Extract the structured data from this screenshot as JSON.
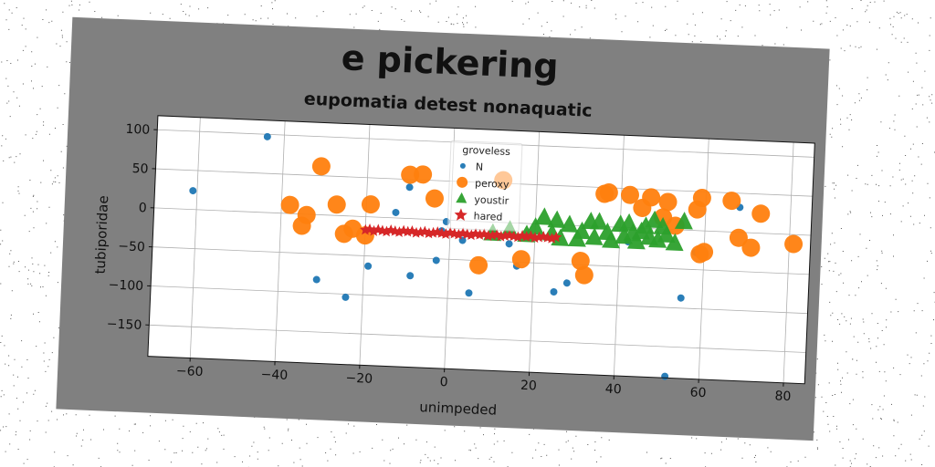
{
  "chart_data": {
    "type": "scatter",
    "title": "e pickering",
    "subtitle": "eupomatia detest nonaquatic",
    "xlabel": "unimpeded",
    "ylabel": "tubiporidae",
    "xlim": [
      -70,
      85
    ],
    "ylim": [
      -190,
      118
    ],
    "xticks": [
      -60,
      -40,
      -20,
      0,
      20,
      40,
      60,
      80
    ],
    "yticks": [
      100,
      50,
      0,
      -50,
      -100,
      -150
    ],
    "grid": true,
    "legend": {
      "title": "groveless",
      "placement": "top-center"
    },
    "series": [
      {
        "name": "N",
        "marker": "circle",
        "size": 4,
        "color": "#1f77b4",
        "points": [
          [
            -61,
            24
          ],
          [
            -44,
            97
          ],
          [
            -31,
            -83
          ],
          [
            -24,
            -104
          ],
          [
            -19,
            -63
          ],
          [
            -13,
            7
          ],
          [
            -10,
            40
          ],
          [
            -9,
            -73
          ],
          [
            -3,
            -52
          ],
          [
            -2,
            -14
          ],
          [
            -1,
            -2
          ],
          [
            3,
            -25
          ],
          [
            5,
            -92
          ],
          [
            14,
            -27
          ],
          [
            16,
            -55
          ],
          [
            25,
            -86
          ],
          [
            28,
            -74
          ],
          [
            42,
            -18
          ],
          [
            52,
            -188
          ],
          [
            55,
            -87
          ],
          [
            58,
            -28
          ],
          [
            68,
            32
          ]
        ]
      },
      {
        "name": "peroxy",
        "marker": "circle",
        "size": 10,
        "color": "#ff7f0e",
        "points": [
          [
            -38,
            11
          ],
          [
            -35,
            -15
          ],
          [
            -34,
            -1
          ],
          [
            -31,
            62
          ],
          [
            -27,
            14
          ],
          [
            -25,
            -23
          ],
          [
            -23,
            -16
          ],
          [
            -20,
            -24
          ],
          [
            -19,
            16
          ],
          [
            -10,
            56
          ],
          [
            -7,
            57
          ],
          [
            -4,
            27
          ],
          [
            7,
            -56
          ],
          [
            12,
            54
          ],
          [
            17,
            -46
          ],
          [
            31,
            -45
          ],
          [
            32,
            -63
          ],
          [
            36,
            42
          ],
          [
            37,
            44
          ],
          [
            42,
            42
          ],
          [
            45,
            26
          ],
          [
            47,
            40
          ],
          [
            50,
            15
          ],
          [
            51,
            35
          ],
          [
            53,
            5
          ],
          [
            58,
            27
          ],
          [
            59,
            42
          ],
          [
            59,
            -30
          ],
          [
            60,
            -27
          ],
          [
            66,
            40
          ],
          [
            68,
            -7
          ],
          [
            71,
            -19
          ],
          [
            73,
            25
          ],
          [
            81,
            -12
          ]
        ]
      },
      {
        "name": "youstir",
        "marker": "triangle",
        "size": 10,
        "color": "#2ca02c",
        "points": [
          [
            10,
            -15
          ],
          [
            14,
            -10
          ],
          [
            18,
            -15
          ],
          [
            20,
            -5
          ],
          [
            22,
            8
          ],
          [
            24,
            -12
          ],
          [
            25,
            5
          ],
          [
            26,
            -18
          ],
          [
            28,
            0
          ],
          [
            30,
            -18
          ],
          [
            31,
            -8
          ],
          [
            33,
            5
          ],
          [
            34,
            -15
          ],
          [
            35,
            5
          ],
          [
            37,
            -8
          ],
          [
            38,
            -18
          ],
          [
            40,
            3
          ],
          [
            41,
            -12
          ],
          [
            42,
            5
          ],
          [
            43,
            -8
          ],
          [
            44,
            -18
          ],
          [
            45,
            -5
          ],
          [
            46,
            2
          ],
          [
            47,
            -12
          ],
          [
            48,
            10
          ],
          [
            49,
            -15
          ],
          [
            50,
            2
          ],
          [
            51,
            -8
          ],
          [
            53,
            -18
          ],
          [
            55,
            10
          ]
        ]
      },
      {
        "name": "hared",
        "marker": "star",
        "size": 5,
        "color": "#d62728",
        "points": [
          [
            -20,
            -17
          ],
          [
            -19,
            -16
          ],
          [
            -18,
            -18
          ],
          [
            -17,
            -16
          ],
          [
            -16,
            -17
          ],
          [
            -15,
            -18
          ],
          [
            -14,
            -16
          ],
          [
            -13,
            -17
          ],
          [
            -12,
            -18
          ],
          [
            -11,
            -16
          ],
          [
            -10,
            -17
          ],
          [
            -9,
            -16
          ],
          [
            -8,
            -18
          ],
          [
            -7,
            -17
          ],
          [
            -6,
            -16
          ],
          [
            -5,
            -18
          ],
          [
            -4,
            -17
          ],
          [
            -3,
            -16
          ],
          [
            -2,
            -17
          ],
          [
            -1,
            -18
          ],
          [
            0,
            -16
          ],
          [
            1,
            -17
          ],
          [
            2,
            -18
          ],
          [
            3,
            -16
          ],
          [
            4,
            -17
          ],
          [
            5,
            -18
          ],
          [
            6,
            -16
          ],
          [
            7,
            -17
          ],
          [
            8,
            -16
          ],
          [
            9,
            -18
          ],
          [
            10,
            -17
          ],
          [
            11,
            -16
          ],
          [
            12,
            -18
          ],
          [
            13,
            -17
          ],
          [
            14,
            -16
          ],
          [
            15,
            -17
          ],
          [
            16,
            -18
          ],
          [
            17,
            -16
          ],
          [
            18,
            -17
          ],
          [
            19,
            -16
          ],
          [
            20,
            -18
          ],
          [
            21,
            -17
          ],
          [
            22,
            -16
          ],
          [
            23,
            -17
          ],
          [
            24,
            -18
          ],
          [
            25,
            -16
          ]
        ]
      }
    ]
  }
}
